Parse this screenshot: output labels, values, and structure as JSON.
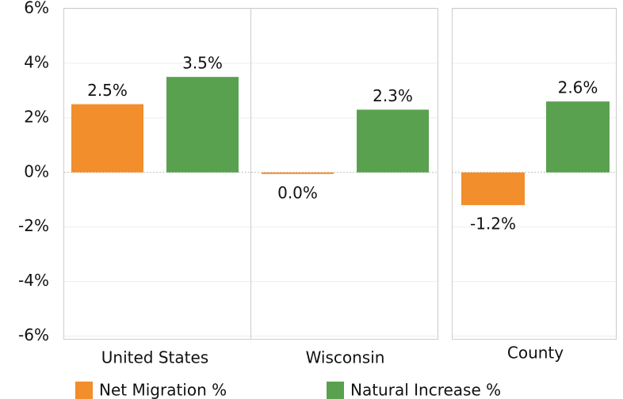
{
  "chart_data": {
    "type": "bar",
    "categories": [
      "United States",
      "Wisconsin",
      "County"
    ],
    "series": [
      {
        "name": "Net Migration %",
        "color": "#f28e2b",
        "values": [
          2.5,
          -0.04,
          -1.2
        ],
        "value_labels": [
          "2.5%",
          "0.0%",
          "-1.2%"
        ]
      },
      {
        "name": "Natural Increase %",
        "color": "#59a14f",
        "values": [
          3.5,
          2.3,
          2.6
        ],
        "value_labels": [
          "3.5%",
          "2.3%",
          "2.6%"
        ]
      }
    ],
    "ylim": [
      -6.1,
      6.0
    ],
    "yticks": [
      {
        "value": -6,
        "label": "-6%"
      },
      {
        "value": -4,
        "label": "-4%"
      },
      {
        "value": -2,
        "label": "-2%"
      },
      {
        "value": 0,
        "label": "0%"
      },
      {
        "value": 2,
        "label": "2%"
      },
      {
        "value": 4,
        "label": "4%"
      },
      {
        "value": 6,
        "label": "6%"
      }
    ],
    "grid": true,
    "legend": "bottom"
  }
}
